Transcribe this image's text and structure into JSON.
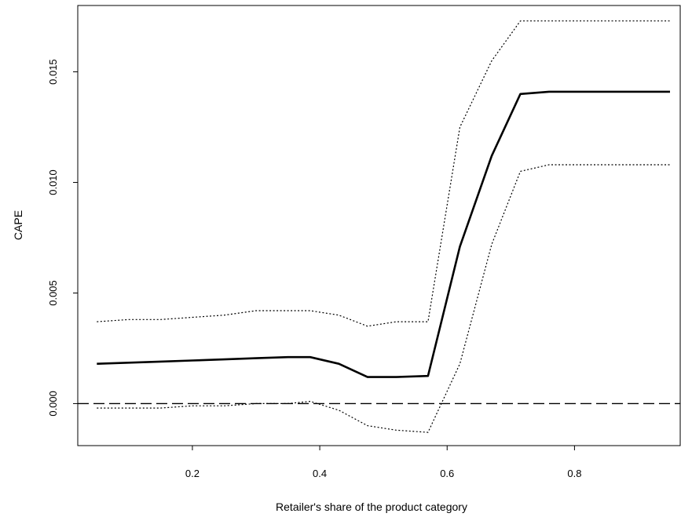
{
  "chart_data": {
    "type": "line",
    "title": "",
    "xlabel": "Retailer's share of the product category",
    "ylabel": "CAPE",
    "xlim": [
      0.02,
      0.966
    ],
    "ylim": [
      -0.0019,
      0.018
    ],
    "x_ticks": [
      0.2,
      0.4,
      0.6,
      0.8
    ],
    "x_tick_labels": [
      "0.2",
      "0.4",
      "0.6",
      "0.8"
    ],
    "y_ticks": [
      0.0,
      0.005,
      0.01,
      0.015
    ],
    "y_tick_labels": [
      "0.000",
      "0.005",
      "0.010",
      "0.015"
    ],
    "grid": false,
    "reference_line": {
      "y": 0.0,
      "style": "dashed"
    },
    "series": [
      {
        "style": "solid-thick",
        "x": [
          0.05,
          0.1,
          0.15,
          0.2,
          0.25,
          0.3,
          0.35,
          0.385,
          0.43,
          0.475,
          0.52,
          0.57,
          0.62,
          0.67,
          0.715,
          0.76,
          0.8,
          0.85,
          0.9,
          0.95
        ],
        "y": [
          0.0018,
          0.00185,
          0.0019,
          0.00195,
          0.002,
          0.00205,
          0.0021,
          0.0021,
          0.0018,
          0.0012,
          0.0012,
          0.00125,
          0.0071,
          0.0112,
          0.014,
          0.0141,
          0.0141,
          0.0141,
          0.0141,
          0.0141
        ]
      },
      {
        "style": "dotted",
        "x": [
          0.05,
          0.1,
          0.15,
          0.2,
          0.25,
          0.3,
          0.35,
          0.385,
          0.43,
          0.475,
          0.52,
          0.57,
          0.62,
          0.67,
          0.715,
          0.76,
          0.8,
          0.85,
          0.9,
          0.95
        ],
        "y": [
          0.0037,
          0.0038,
          0.0038,
          0.0039,
          0.004,
          0.0042,
          0.0042,
          0.0042,
          0.004,
          0.0035,
          0.0037,
          0.0037,
          0.0125,
          0.0155,
          0.0173,
          0.0173,
          0.0173,
          0.0173,
          0.0173,
          0.0173
        ]
      },
      {
        "style": "dotted",
        "x": [
          0.05,
          0.1,
          0.15,
          0.2,
          0.25,
          0.3,
          0.35,
          0.385,
          0.43,
          0.475,
          0.52,
          0.57,
          0.62,
          0.67,
          0.715,
          0.76,
          0.8,
          0.85,
          0.9,
          0.95
        ],
        "y": [
          -0.0002,
          -0.0002,
          -0.0002,
          -0.0001,
          -0.0001,
          0.0,
          0.0,
          0.0001,
          -0.0003,
          -0.001,
          -0.0012,
          -0.0013,
          0.0018,
          0.0072,
          0.0105,
          0.0108,
          0.0108,
          0.0108,
          0.0108,
          0.0108
        ]
      }
    ]
  }
}
